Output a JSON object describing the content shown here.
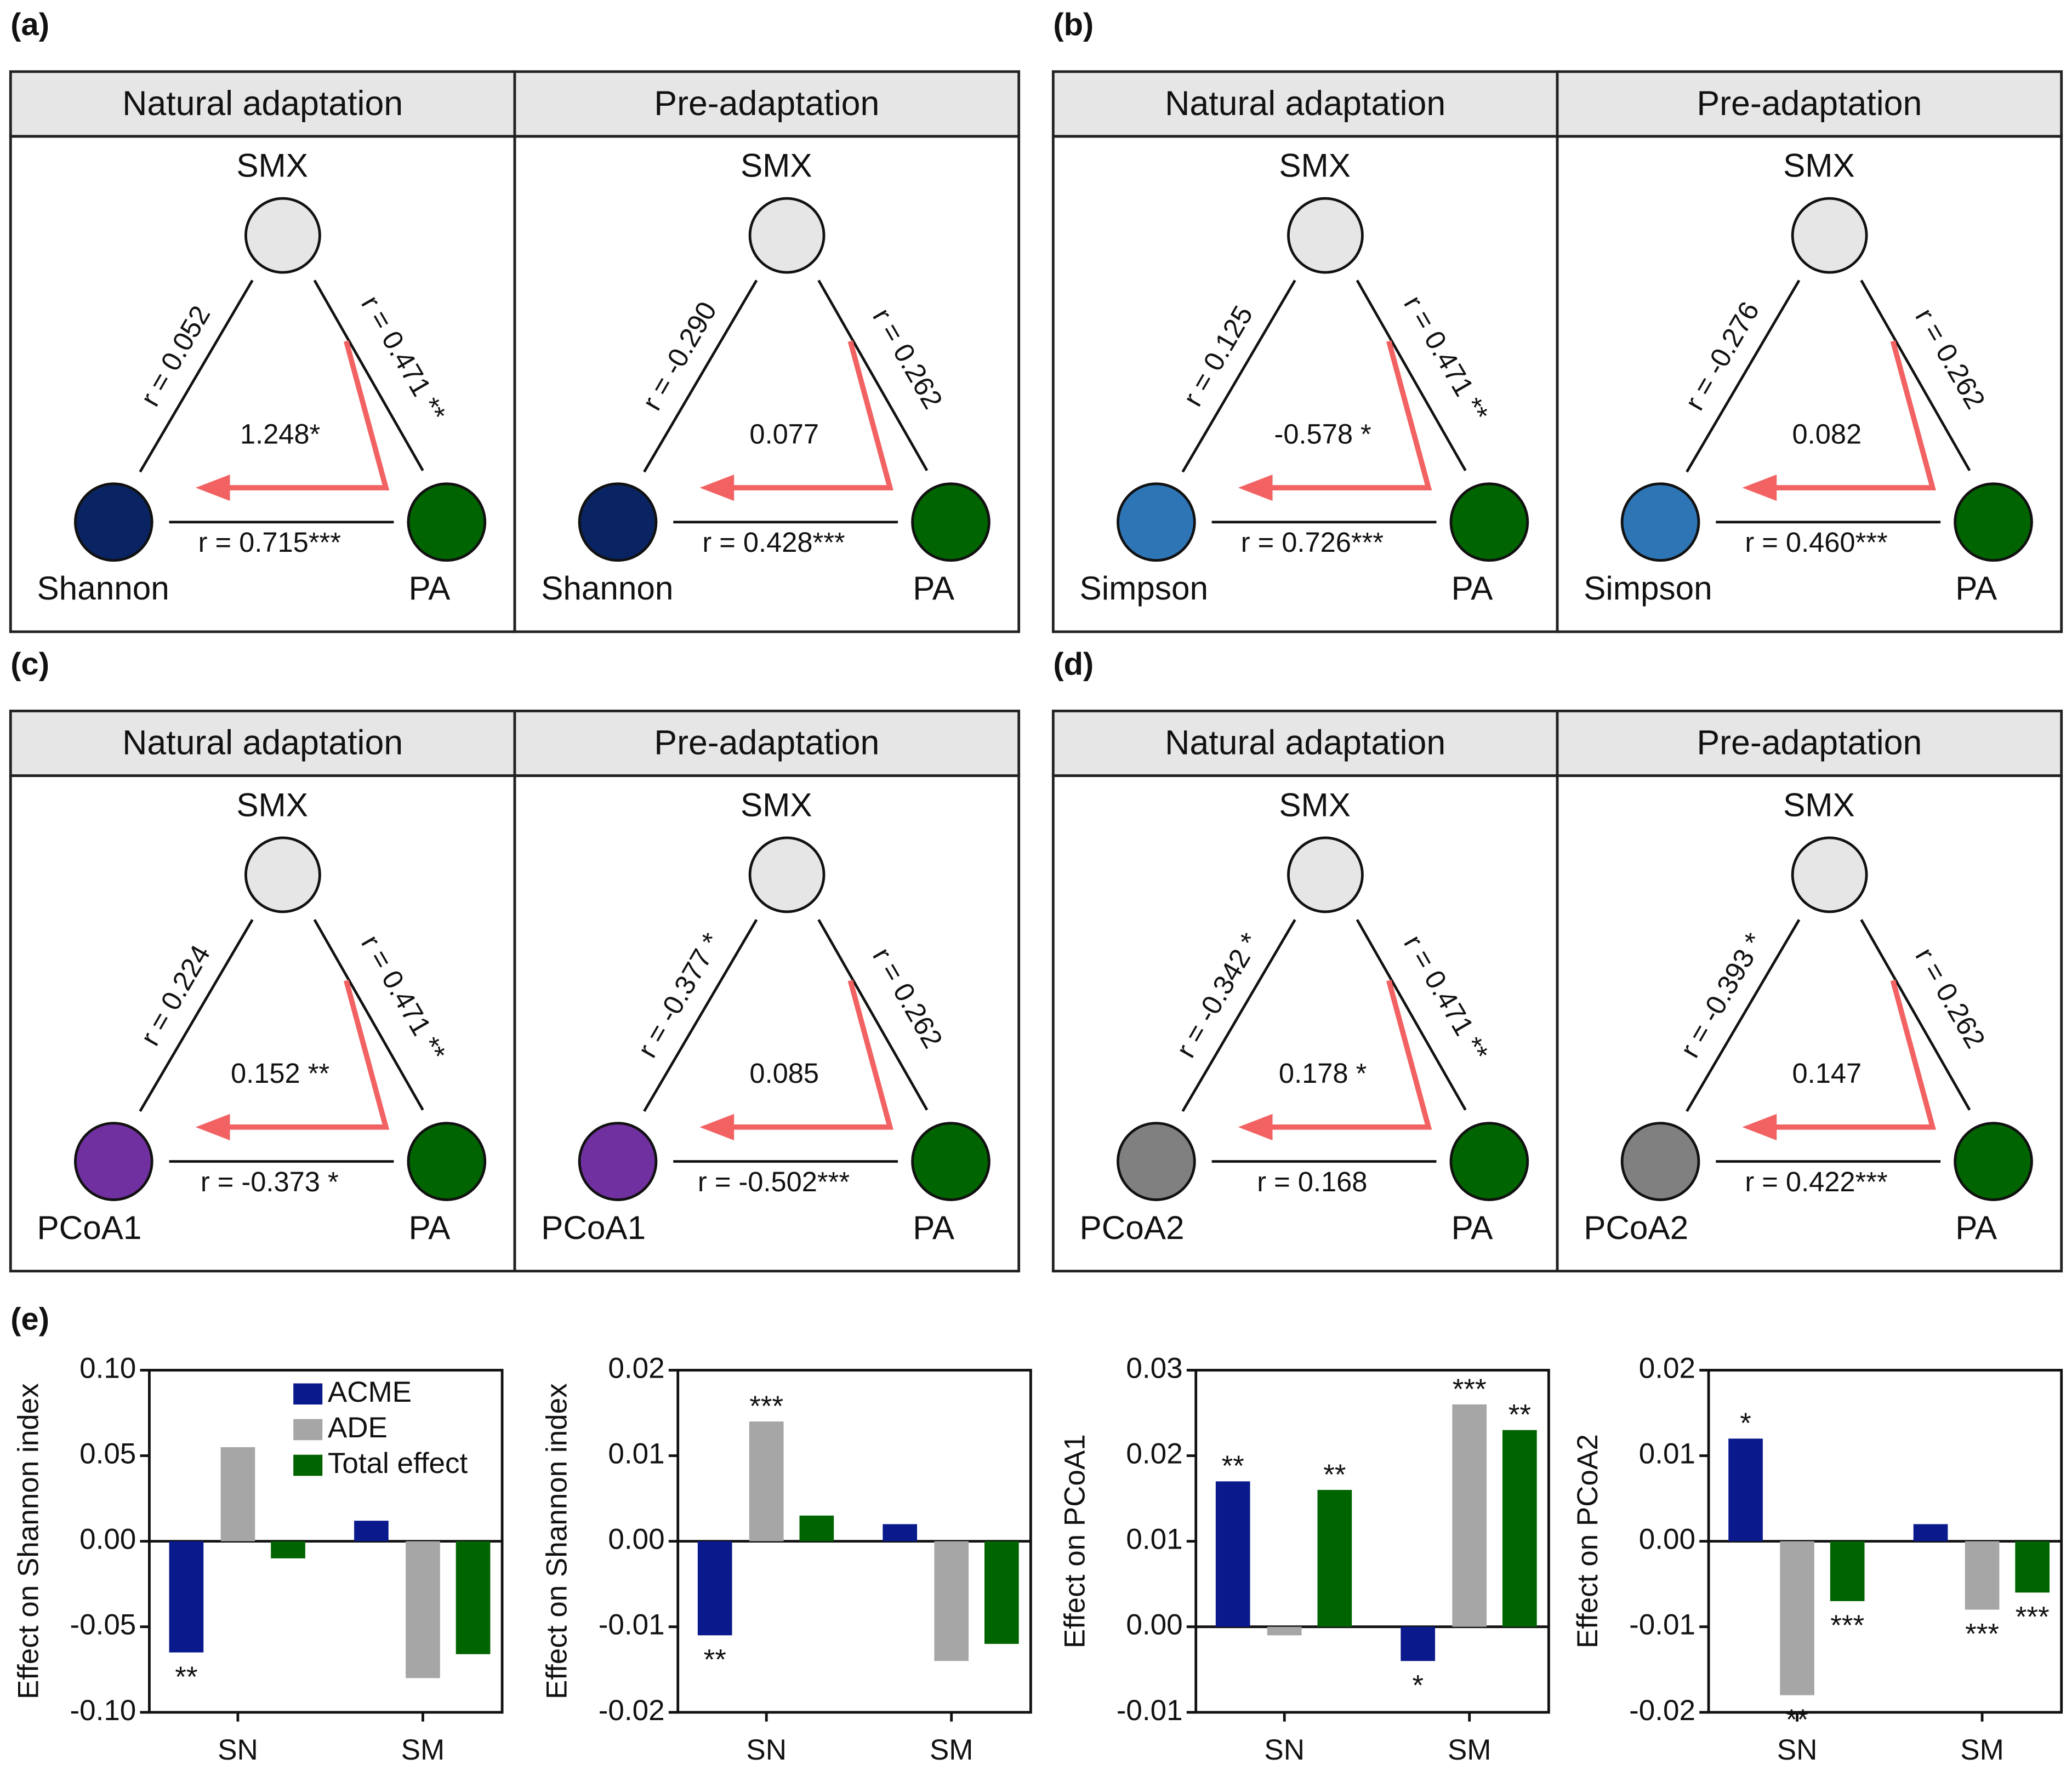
{
  "panel_e_label": "(e)",
  "node_colors": {
    "top": "#e6e6e6",
    "right": "#006400"
  },
  "diagrams": [
    {
      "label": "(a)",
      "subpanels": [
        {
          "header": "Natural adaptation",
          "top": "SMX",
          "left": "Shannon",
          "right": "PA",
          "left_r": "r = 0.052",
          "right_r": "r = 0.471 **",
          "bottom_r": "r = 0.715***",
          "effect": "1.248*",
          "left_color": "#0a2463"
        },
        {
          "header": "Pre-adaptation",
          "top": "SMX",
          "left": "Shannon",
          "right": "PA",
          "left_r": "r = -0.290",
          "right_r": "r = 0.262",
          "bottom_r": "r = 0.428***",
          "effect": "0.077",
          "left_color": "#0a2463"
        }
      ]
    },
    {
      "label": "(b)",
      "subpanels": [
        {
          "header": "Natural adaptation",
          "top": "SMX",
          "left": "Simpson",
          "right": "PA",
          "left_r": "r = 0.125",
          "right_r": "r = 0.471 **",
          "bottom_r": "r = 0.726***",
          "effect": "-0.578 *",
          "left_color": "#2e75b6"
        },
        {
          "header": "Pre-adaptation",
          "top": "SMX",
          "left": "Simpson",
          "right": "PA",
          "left_r": "r = -0.276",
          "right_r": "r = 0.262",
          "bottom_r": "r = 0.460***",
          "effect": "0.082",
          "left_color": "#2e75b6"
        }
      ]
    },
    {
      "label": "(c)",
      "subpanels": [
        {
          "header": "Natural adaptation",
          "top": "SMX",
          "left": "PCoA1",
          "right": "PA",
          "left_r": "r = 0.224",
          "right_r": "r = 0.471 **",
          "bottom_r": "r = -0.373 *",
          "effect": "0.152 **",
          "left_color": "#7030a0"
        },
        {
          "header": "Pre-adaptation",
          "top": "SMX",
          "left": "PCoA1",
          "right": "PA",
          "left_r": "r = -0.377 *",
          "right_r": "r = 0.262",
          "bottom_r": "r = -0.502***",
          "effect": "0.085",
          "left_color": "#7030a0"
        }
      ]
    },
    {
      "label": "(d)",
      "subpanels": [
        {
          "header": "Natural adaptation",
          "top": "SMX",
          "left": "PCoA2",
          "right": "PA",
          "left_r": "r = -0.342 *",
          "right_r": "r = 0.471 **",
          "bottom_r": "r = 0.168",
          "effect": "0.178 *",
          "left_color": "#808080"
        },
        {
          "header": "Pre-adaptation",
          "top": "SMX",
          "left": "PCoA2",
          "right": "PA",
          "left_r": "r = -0.393 *",
          "right_r": "r = 0.262",
          "bottom_r": "r = 0.422***",
          "effect": "0.147",
          "left_color": "#808080"
        }
      ]
    }
  ],
  "chart_data": [
    {
      "type": "bar",
      "y_label": "Effect on Shannon index",
      "categories": [
        "SN",
        "SM"
      ],
      "legend": true,
      "ylim": [
        -0.1,
        0.1
      ],
      "yticks": [
        {
          "value": -0.1,
          "label": "-0.10"
        },
        -0.05,
        {
          "value": 0,
          "label": "0.00"
        },
        0.05,
        {
          "value": 0.1,
          "label": "0.10"
        }
      ],
      "series": [
        {
          "name": "ACME",
          "color": "#0a1a8c",
          "values": [
            -0.065,
            0.012
          ],
          "significance": [
            "**",
            null
          ]
        },
        {
          "name": "ADE",
          "color": "#a6a6a6",
          "values": [
            0.055,
            -0.08
          ],
          "significance": [
            null,
            null
          ]
        },
        {
          "name": "Total effect",
          "color": "#006400",
          "values": [
            -0.01,
            -0.066
          ],
          "significance": [
            null,
            null
          ]
        }
      ]
    },
    {
      "type": "bar",
      "y_label": "Effect on Shannon index",
      "categories": [
        "SN",
        "SM"
      ],
      "legend": false,
      "ylim": [
        -0.02,
        0.02
      ],
      "yticks": [
        -0.02,
        -0.01,
        {
          "value": 0,
          "label": "0.00"
        },
        0.01,
        0.02
      ],
      "series": [
        {
          "color": "#0a1a8c",
          "values": [
            -0.011,
            0.002
          ],
          "significance": [
            "**",
            null
          ]
        },
        {
          "color": "#a6a6a6",
          "values": [
            0.014,
            -0.014
          ],
          "significance": [
            "***",
            null
          ]
        },
        {
          "color": "#006400",
          "values": [
            0.003,
            -0.012
          ],
          "significance": [
            null,
            null
          ]
        }
      ]
    },
    {
      "type": "bar",
      "y_label": "Effect on PCoA1",
      "categories": [
        "SN",
        "SM"
      ],
      "legend": false,
      "ylim": [
        -0.01,
        0.03
      ],
      "yticks": [
        -0.01,
        {
          "value": 0,
          "label": "0.00"
        },
        0.01,
        0.02,
        0.03
      ],
      "series": [
        {
          "color": "#0a1a8c",
          "values": [
            0.017,
            -0.004
          ],
          "significance": [
            "**",
            "*"
          ]
        },
        {
          "color": "#a6a6a6",
          "values": [
            -0.001,
            0.026
          ],
          "significance": [
            null,
            "***"
          ]
        },
        {
          "color": "#006400",
          "values": [
            0.016,
            0.023
          ],
          "significance": [
            "**",
            "**"
          ]
        }
      ]
    },
    {
      "type": "bar",
      "y_label": "Effect on PCoA2",
      "categories": [
        "SN",
        "SM"
      ],
      "legend": false,
      "ylim": [
        -0.02,
        0.02
      ],
      "yticks": [
        -0.02,
        -0.01,
        {
          "value": 0,
          "label": "0.00"
        },
        0.01,
        0.02
      ],
      "series": [
        {
          "color": "#0a1a8c",
          "values": [
            0.012,
            0.002
          ],
          "significance": [
            "*",
            null
          ]
        },
        {
          "color": "#a6a6a6",
          "values": [
            -0.018,
            -0.008
          ],
          "significance": [
            "**",
            "***"
          ]
        },
        {
          "color": "#006400",
          "values": [
            -0.007,
            -0.006
          ],
          "significance": [
            "***",
            "***"
          ]
        }
      ]
    }
  ]
}
